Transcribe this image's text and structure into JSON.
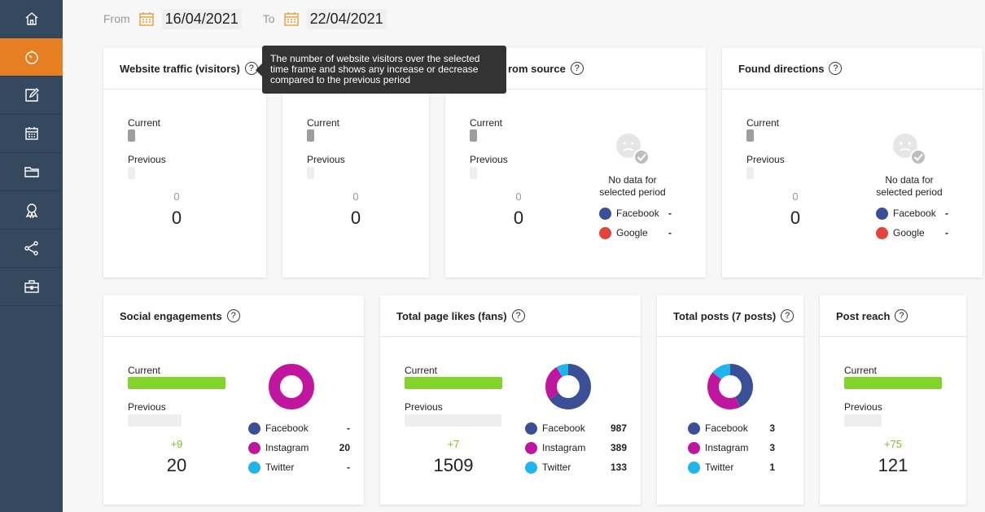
{
  "nav": {
    "items": [
      {
        "icon": "home-icon"
      },
      {
        "icon": "clock-icon"
      },
      {
        "icon": "edit-icon"
      },
      {
        "icon": "calendar-icon"
      },
      {
        "icon": "folder-icon"
      },
      {
        "icon": "award-icon"
      },
      {
        "icon": "share-icon"
      },
      {
        "icon": "briefcase-icon"
      }
    ],
    "active_index": 1
  },
  "date_range": {
    "from_label": "From",
    "from_value": "16/04/2021",
    "to_label": "To",
    "to_value": "22/04/2021"
  },
  "tooltip": {
    "text": "The number of website visitors over the selected time frame and shows any increase or decrease compared to the previous period"
  },
  "cards": {
    "website_traffic": {
      "title": "Website traffic (visitors)",
      "current_label": "Current",
      "previous_label": "Previous",
      "delta": "0",
      "total": "0"
    },
    "card2": {
      "current_label": "Current",
      "previous_label": "Previous",
      "delta": "0",
      "total": "0"
    },
    "from_source": {
      "title": "rom source",
      "current_label": "Current",
      "previous_label": "Previous",
      "delta": "0",
      "total": "0",
      "nodata_line1": "No data for",
      "nodata_line2": "selected period",
      "legend": [
        {
          "name": "Facebook",
          "value": "-",
          "color": "#3b4f96"
        },
        {
          "name": "Google",
          "value": "-",
          "color": "#e0443b"
        }
      ]
    },
    "found_directions": {
      "title": "Found directions",
      "current_label": "Current",
      "previous_label": "Previous",
      "delta": "0",
      "total": "0",
      "nodata_line1": "No data for",
      "nodata_line2": "selected period",
      "legend": [
        {
          "name": "Facebook",
          "value": "-",
          "color": "#3b4f96"
        },
        {
          "name": "Google",
          "value": "-",
          "color": "#e0443b"
        }
      ]
    },
    "social_engagements": {
      "title": "Social engagements",
      "current_label": "Current",
      "previous_label": "Previous",
      "delta": "+9",
      "total": "20",
      "current_fraction": 1.0,
      "previous_fraction": 0.55,
      "legend": [
        {
          "name": "Facebook",
          "value": "-",
          "color": "#3b4f96"
        },
        {
          "name": "Instagram",
          "value": "20",
          "color": "#c0169f"
        },
        {
          "name": "Twitter",
          "value": "-",
          "color": "#1fb5ec"
        }
      ]
    },
    "page_likes": {
      "title": "Total page likes (fans)",
      "current_label": "Current",
      "previous_label": "Previous",
      "delta": "+7",
      "total": "1509",
      "current_fraction": 1.0,
      "previous_fraction": 0.995,
      "legend": [
        {
          "name": "Facebook",
          "value": "987",
          "color": "#3b4f96"
        },
        {
          "name": "Instagram",
          "value": "389",
          "color": "#c0169f"
        },
        {
          "name": "Twitter",
          "value": "133",
          "color": "#1fb5ec"
        }
      ]
    },
    "total_posts": {
      "title": "Total posts (7 posts)",
      "legend": [
        {
          "name": "Facebook",
          "value": "3",
          "color": "#3b4f96"
        },
        {
          "name": "Instagram",
          "value": "3",
          "color": "#c0169f"
        },
        {
          "name": "Twitter",
          "value": "1",
          "color": "#1fb5ec"
        }
      ]
    },
    "post_reach": {
      "title": "Post reach",
      "current_label": "Current",
      "previous_label": "Previous",
      "delta": "+75",
      "total": "121",
      "current_fraction": 1.0,
      "previous_fraction": 0.38
    }
  },
  "chart_data": [
    {
      "type": "pie",
      "categories": [
        "Facebook",
        "Instagram",
        "Twitter"
      ],
      "values": [
        0,
        20,
        0
      ],
      "colors": [
        "#3b4f96",
        "#c0169f",
        "#1fb5ec"
      ]
    },
    {
      "type": "pie",
      "categories": [
        "Facebook",
        "Instagram",
        "Twitter"
      ],
      "values": [
        987,
        389,
        133
      ],
      "colors": [
        "#3b4f96",
        "#c0169f",
        "#1fb5ec"
      ]
    },
    {
      "type": "pie",
      "categories": [
        "Facebook",
        "Instagram",
        "Twitter"
      ],
      "values": [
        3,
        3,
        1
      ],
      "colors": [
        "#3b4f96",
        "#c0169f",
        "#1fb5ec"
      ]
    }
  ]
}
